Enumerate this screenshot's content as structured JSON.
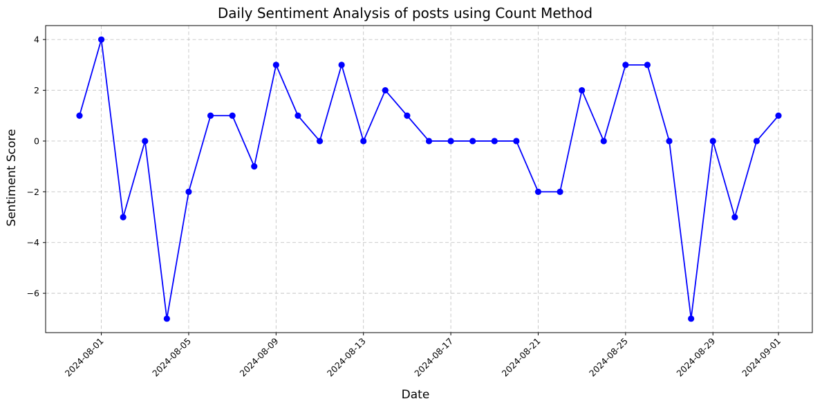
{
  "chart_data": {
    "type": "line",
    "title": "Daily Sentiment Analysis of posts using Count Method",
    "xlabel": "Date",
    "ylabel": "Sentiment Score",
    "x_tick_labels": [
      "2024-08-01",
      "2024-08-05",
      "2024-08-09",
      "2024-08-13",
      "2024-08-17",
      "2024-08-21",
      "2024-08-25",
      "2024-08-29",
      "2024-09-01"
    ],
    "y_ticks": [
      -6,
      -4,
      -2,
      0,
      2,
      4
    ],
    "ylim": [
      -7.55,
      4.55
    ],
    "xlim": [
      "2024-07-30",
      "2024-09-01"
    ],
    "grid": true,
    "color": "#0000ff",
    "x": [
      "2024-07-31",
      "2024-08-01",
      "2024-08-02",
      "2024-08-03",
      "2024-08-04",
      "2024-08-05",
      "2024-08-06",
      "2024-08-07",
      "2024-08-08",
      "2024-08-09",
      "2024-08-10",
      "2024-08-11",
      "2024-08-12",
      "2024-08-13",
      "2024-08-14",
      "2024-08-15",
      "2024-08-16",
      "2024-08-17",
      "2024-08-18",
      "2024-08-19",
      "2024-08-20",
      "2024-08-21",
      "2024-08-22",
      "2024-08-23",
      "2024-08-24",
      "2024-08-25",
      "2024-08-26",
      "2024-08-27",
      "2024-08-28",
      "2024-08-29",
      "2024-08-30",
      "2024-08-31",
      "2024-09-01"
    ],
    "values": [
      1,
      4,
      -3,
      0,
      -7,
      -2,
      1,
      1,
      -1,
      3,
      1,
      0,
      3,
      0,
      2,
      1,
      0,
      0,
      0,
      0,
      0,
      -2,
      -2,
      2,
      0,
      3,
      3,
      0,
      -7,
      0,
      -3,
      0,
      1
    ]
  }
}
